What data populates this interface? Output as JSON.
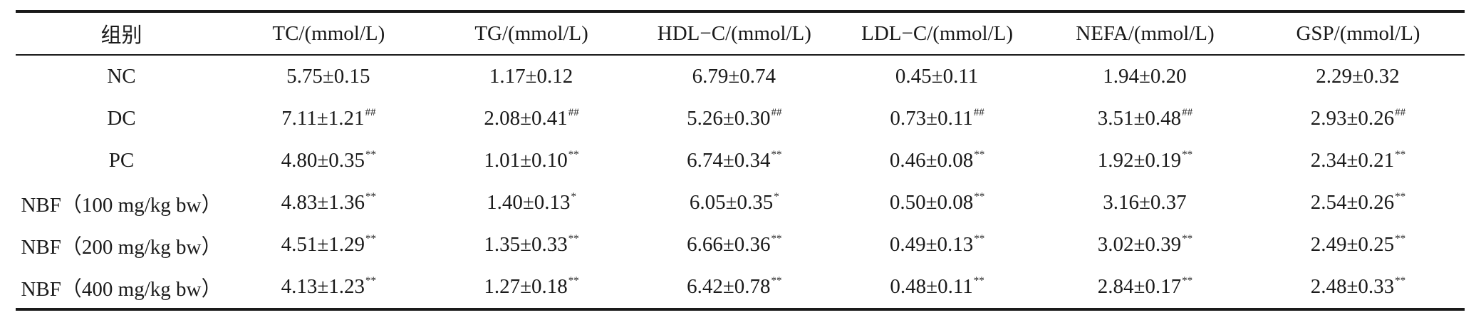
{
  "table": {
    "headers": [
      "组别",
      "TC/(mmol/L)",
      "TG/(mmol/L)",
      "HDL−C/(mmol/L)",
      "LDL−C/(mmol/L)",
      "NEFA/(mmol/L)",
      "GSP/(mmol/L)"
    ],
    "rows": [
      {
        "group": "NC",
        "cells": [
          {
            "value": "5.75±0.15",
            "mark": ""
          },
          {
            "value": "1.17±0.12",
            "mark": ""
          },
          {
            "value": "6.79±0.74",
            "mark": ""
          },
          {
            "value": "0.45±0.11",
            "mark": ""
          },
          {
            "value": "1.94±0.20",
            "mark": ""
          },
          {
            "value": "2.29±0.32",
            "mark": ""
          }
        ]
      },
      {
        "group": "DC",
        "cells": [
          {
            "value": "7.11±1.21",
            "mark": "##"
          },
          {
            "value": "2.08±0.41",
            "mark": "##"
          },
          {
            "value": "5.26±0.30",
            "mark": "##"
          },
          {
            "value": "0.73±0.11",
            "mark": "##"
          },
          {
            "value": "3.51±0.48",
            "mark": "##"
          },
          {
            "value": "2.93±0.26",
            "mark": "##"
          }
        ]
      },
      {
        "group": "PC",
        "cells": [
          {
            "value": "4.80±0.35",
            "mark": "**"
          },
          {
            "value": "1.01±0.10",
            "mark": "**"
          },
          {
            "value": "6.74±0.34",
            "mark": "**"
          },
          {
            "value": "0.46±0.08",
            "mark": "**"
          },
          {
            "value": "1.92±0.19",
            "mark": "**"
          },
          {
            "value": "2.34±0.21",
            "mark": "**"
          }
        ]
      },
      {
        "group": "NBF（100 mg/kg bw）",
        "cells": [
          {
            "value": "4.83±1.36",
            "mark": "**"
          },
          {
            "value": "1.40±0.13",
            "mark": "*"
          },
          {
            "value": "6.05±0.35",
            "mark": "*"
          },
          {
            "value": "0.50±0.08",
            "mark": "**"
          },
          {
            "value": "3.16±0.37",
            "mark": ""
          },
          {
            "value": "2.54±0.26",
            "mark": "**"
          }
        ]
      },
      {
        "group": "NBF（200 mg/kg bw）",
        "cells": [
          {
            "value": "4.51±1.29",
            "mark": "**"
          },
          {
            "value": "1.35±0.33",
            "mark": "**"
          },
          {
            "value": "6.66±0.36",
            "mark": "**"
          },
          {
            "value": "0.49±0.13",
            "mark": "**"
          },
          {
            "value": "3.02±0.39",
            "mark": "**"
          },
          {
            "value": "2.49±0.25",
            "mark": "**"
          }
        ]
      },
      {
        "group": "NBF（400 mg/kg bw）",
        "cells": [
          {
            "value": "4.13±1.23",
            "mark": "**"
          },
          {
            "value": "1.27±0.18",
            "mark": "**"
          },
          {
            "value": "6.42±0.78",
            "mark": "**"
          },
          {
            "value": "0.48±0.11",
            "mark": "**"
          },
          {
            "value": "2.84±0.17",
            "mark": "**"
          },
          {
            "value": "2.48±0.33",
            "mark": "**"
          }
        ]
      }
    ]
  }
}
